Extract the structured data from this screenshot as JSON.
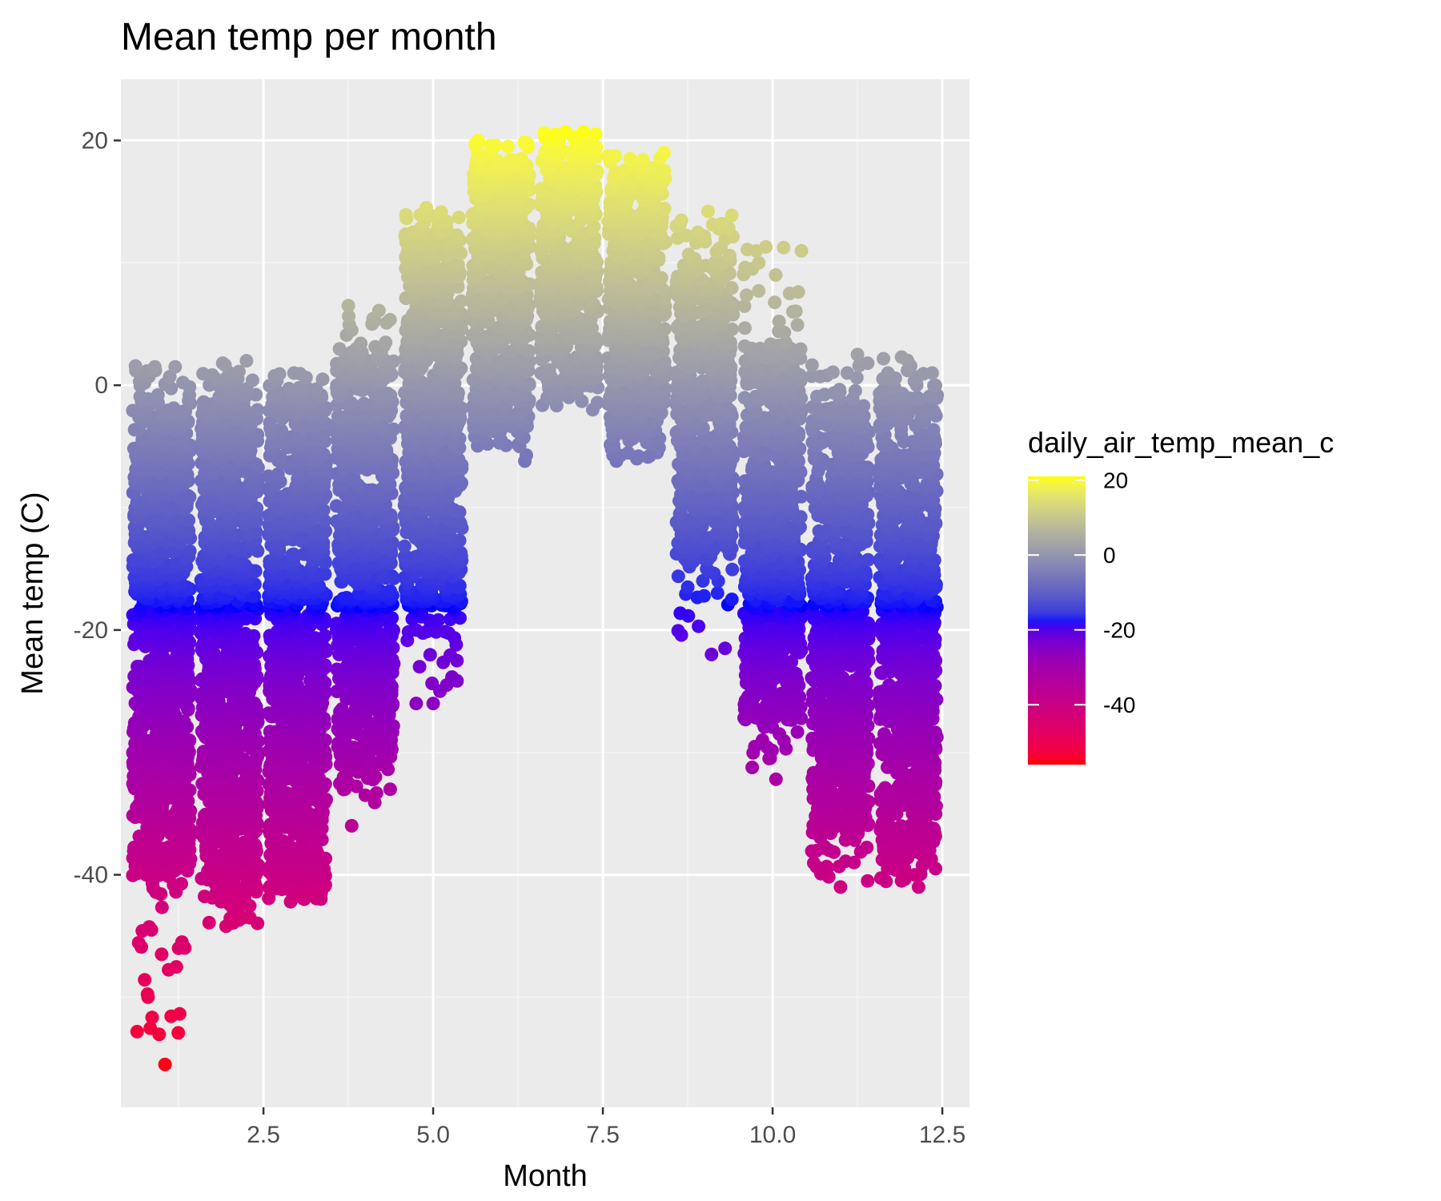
{
  "colors": {
    "panel_background": "#EBEBEB",
    "grid_major": "#FFFFFF",
    "grid_minor": "#F5F5F5",
    "scale_low": "#FF0000",
    "scale_mid": "#0000FF",
    "scale_high": "#FFFF00"
  },
  "chart_data": {
    "type": "scatter",
    "title": "Mean temp per month",
    "xlabel": "Month",
    "ylabel": "Mean temp (C)",
    "xlim": [
      0.4,
      12.9
    ],
    "ylim": [
      -59,
      25
    ],
    "x_ticks": [
      2.5,
      5.0,
      7.5,
      10.0,
      12.5
    ],
    "x_tick_labels": [
      "2.5",
      "5.0",
      "7.5",
      "10.0",
      "12.5"
    ],
    "y_ticks": [
      20,
      0,
      -20,
      -40
    ],
    "y_tick_labels": [
      "20",
      "0",
      "-20",
      "-40"
    ],
    "grid": true,
    "jitter_width": 0.5,
    "color_variable": "daily_air_temp_mean_c",
    "color_scale": {
      "type": "gradient2",
      "low": "#FF0000",
      "mid": "#0000FF",
      "high": "#FFFF00",
      "midpoint": -18,
      "limits": [
        -56,
        21
      ],
      "breaks": [
        20,
        0,
        -20,
        -40
      ],
      "break_labels": [
        "20",
        "0",
        "-20",
        "-40"
      ]
    },
    "legend": {
      "title": "daily_air_temp_mean_c",
      "position": "right"
    },
    "series": [
      {
        "month": 1,
        "core_min": -40,
        "core_max": -2,
        "max": 1.6,
        "min": -56,
        "outliers": [
          [
            0.8,
            -50
          ],
          [
            1.05,
            -55.5
          ],
          [
            1.25,
            -46
          ],
          [
            1.0,
            -46.5
          ],
          [
            0.85,
            -44.5
          ],
          [
            1.3,
            -45.5
          ],
          [
            1.2,
            1.5
          ],
          [
            0.9,
            1.5
          ],
          [
            0.75,
            0.2
          ]
        ]
      },
      {
        "month": 2,
        "core_min": -41,
        "core_max": -1,
        "max": 2.0,
        "min": -44.5,
        "outliers": [
          [
            2.2,
            -43.5
          ],
          [
            2.3,
            -43.5
          ],
          [
            1.95,
            -44.2
          ],
          [
            2.25,
            2.0
          ],
          [
            1.9,
            1.8
          ],
          [
            2.0,
            1.0
          ],
          [
            1.8,
            0.5
          ]
        ]
      },
      {
        "month": 3,
        "core_min": -41,
        "core_max": -1,
        "max": 1.0,
        "min": -42.2,
        "outliers": [
          [
            2.9,
            -42.2
          ],
          [
            3.1,
            -42
          ],
          [
            3.35,
            -41.5
          ],
          [
            2.95,
            1.0
          ],
          [
            3.0,
            -0.6
          ]
        ]
      },
      {
        "month": 4,
        "core_min": -31,
        "core_max": 2,
        "max": 6.5,
        "min": -36,
        "outliers": [
          [
            3.8,
            -36
          ],
          [
            4.0,
            -33.5
          ],
          [
            3.7,
            -33
          ],
          [
            4.15,
            -32
          ],
          [
            3.75,
            6.5
          ],
          [
            4.1,
            5
          ],
          [
            3.8,
            4.5
          ],
          [
            4.3,
            3.5
          ]
        ]
      },
      {
        "month": 5,
        "core_min": -18,
        "core_max": 12,
        "max": 14.5,
        "min": -26,
        "outliers": [
          [
            4.75,
            -26
          ],
          [
            5.0,
            -26
          ],
          [
            5.1,
            -25
          ],
          [
            5.2,
            -24.5
          ],
          [
            5.35,
            -22.5
          ],
          [
            4.8,
            -23
          ],
          [
            4.75,
            -20
          ],
          [
            4.9,
            14.5
          ],
          [
            4.7,
            12.5
          ],
          [
            5.1,
            12.5
          ]
        ]
      },
      {
        "month": 6,
        "core_min": -3,
        "core_max": 18,
        "max": 20,
        "min": -6.2,
        "outliers": [
          [
            6.35,
            -6.2
          ],
          [
            5.8,
            -4.8
          ],
          [
            6.0,
            -4.5
          ],
          [
            5.6,
            -3.5
          ],
          [
            6.1,
            19.5
          ],
          [
            5.85,
            19
          ],
          [
            6.3,
            18.5
          ]
        ]
      },
      {
        "month": 7,
        "core_min": 0,
        "core_max": 19,
        "max": 20.8,
        "min": -2,
        "outliers": [
          [
            6.8,
            20.5
          ],
          [
            6.95,
            20.7
          ],
          [
            7.1,
            20.3
          ],
          [
            7.3,
            19.5
          ],
          [
            6.65,
            20.2
          ],
          [
            7.35,
            -2
          ],
          [
            7.0,
            -1
          ]
        ]
      },
      {
        "month": 8,
        "core_min": -4,
        "core_max": 17,
        "max": 19,
        "min": -6.2,
        "outliers": [
          [
            7.7,
            -6.2
          ],
          [
            8.0,
            -6
          ],
          [
            8.3,
            -5.5
          ],
          [
            8.4,
            19
          ],
          [
            7.9,
            18.5
          ],
          [
            8.1,
            18
          ],
          [
            8.2,
            -4.8
          ]
        ]
      },
      {
        "month": 9,
        "core_min": -14,
        "core_max": 10,
        "max": 14.2,
        "min": -22,
        "outliers": [
          [
            9.3,
            -21.5
          ],
          [
            9.1,
            -22
          ],
          [
            9.4,
            -17.5
          ],
          [
            8.75,
            -16.5
          ],
          [
            9.2,
            -16
          ],
          [
            9.05,
            14.2
          ],
          [
            8.9,
            12.5
          ],
          [
            9.25,
            13.2
          ]
        ]
      },
      {
        "month": 10,
        "core_min": -27,
        "core_max": 3,
        "max": 11.3,
        "min": -32.2,
        "outliers": [
          [
            10.05,
            -32.2
          ],
          [
            9.95,
            -30.5
          ],
          [
            9.85,
            -29
          ],
          [
            10.1,
            -28.5
          ],
          [
            9.9,
            11.3
          ],
          [
            10.25,
            7.5
          ],
          [
            9.7,
            9.5
          ],
          [
            10.3,
            6
          ]
        ]
      },
      {
        "month": 11,
        "core_min": -36,
        "core_max": -2,
        "max": 2.5,
        "min": -41,
        "outliers": [
          [
            11.0,
            -41
          ],
          [
            11.4,
            -40.5
          ],
          [
            10.8,
            -39.5
          ],
          [
            11.2,
            -39
          ],
          [
            11.25,
            2.5
          ],
          [
            11.1,
            1
          ],
          [
            10.8,
            0.8
          ],
          [
            11.4,
            1.8
          ]
        ]
      },
      {
        "month": 12,
        "core_min": -38,
        "core_max": -1,
        "max": 2.3,
        "min": -41,
        "outliers": [
          [
            12.15,
            -41
          ],
          [
            11.9,
            -40.5
          ],
          [
            12.4,
            -39.5
          ],
          [
            11.75,
            -39
          ],
          [
            11.9,
            2.3
          ],
          [
            12.35,
            1.0
          ],
          [
            11.7,
            1.0
          ]
        ]
      }
    ]
  }
}
